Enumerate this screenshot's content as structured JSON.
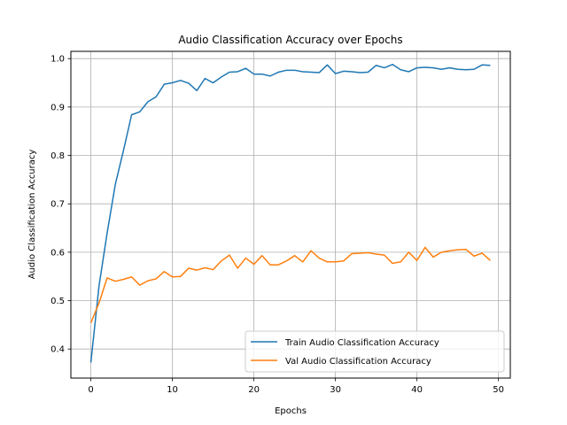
{
  "chart_data": {
    "type": "line",
    "title": "Audio Classification Accuracy over Epochs",
    "xlabel": "Epochs",
    "ylabel": "Audio Classification Accuracy",
    "xlim": [
      -2.45,
      51.45
    ],
    "ylim": [
      0.34,
      1.015
    ],
    "xticks": [
      0,
      10,
      20,
      30,
      40,
      50
    ],
    "yticks": [
      0.4,
      0.5,
      0.6,
      0.7,
      0.8,
      0.9,
      1.0
    ],
    "xtick_labels": [
      "0",
      "10",
      "20",
      "30",
      "40",
      "50"
    ],
    "ytick_labels": [
      "0.4",
      "0.5",
      "0.6",
      "0.7",
      "0.8",
      "0.9",
      "1.0"
    ],
    "grid": true,
    "legend_position": "lower-right",
    "x": [
      0,
      1,
      2,
      3,
      4,
      5,
      6,
      7,
      8,
      9,
      10,
      11,
      12,
      13,
      14,
      15,
      16,
      17,
      18,
      19,
      20,
      21,
      22,
      23,
      24,
      25,
      26,
      27,
      28,
      29,
      30,
      31,
      32,
      33,
      34,
      35,
      36,
      37,
      38,
      39,
      40,
      41,
      42,
      43,
      44,
      45,
      46,
      47,
      48,
      49
    ],
    "series": [
      {
        "name": "Train Audio Classification Accuracy",
        "color": "#1f77b4",
        "values": [
          0.372,
          0.53,
          0.64,
          0.74,
          0.81,
          0.884,
          0.89,
          0.911,
          0.921,
          0.947,
          0.95,
          0.955,
          0.949,
          0.934,
          0.959,
          0.95,
          0.962,
          0.972,
          0.973,
          0.98,
          0.968,
          0.968,
          0.964,
          0.972,
          0.976,
          0.976,
          0.973,
          0.972,
          0.971,
          0.987,
          0.969,
          0.974,
          0.973,
          0.971,
          0.972,
          0.986,
          0.981,
          0.988,
          0.977,
          0.973,
          0.981,
          0.982,
          0.981,
          0.978,
          0.981,
          0.978,
          0.977,
          0.978,
          0.987,
          0.986
        ]
      },
      {
        "name": "Val Audio Classification Accuracy",
        "color": "#ff7f0e",
        "values": [
          0.454,
          0.495,
          0.547,
          0.54,
          0.544,
          0.549,
          0.532,
          0.541,
          0.545,
          0.56,
          0.549,
          0.55,
          0.567,
          0.563,
          0.568,
          0.564,
          0.582,
          0.594,
          0.567,
          0.588,
          0.575,
          0.593,
          0.574,
          0.574,
          0.582,
          0.593,
          0.58,
          0.603,
          0.588,
          0.58,
          0.58,
          0.582,
          0.597,
          0.598,
          0.599,
          0.596,
          0.594,
          0.577,
          0.58,
          0.6,
          0.583,
          0.61,
          0.59,
          0.6,
          0.603,
          0.605,
          0.606,
          0.592,
          0.598,
          0.583
        ]
      }
    ]
  }
}
